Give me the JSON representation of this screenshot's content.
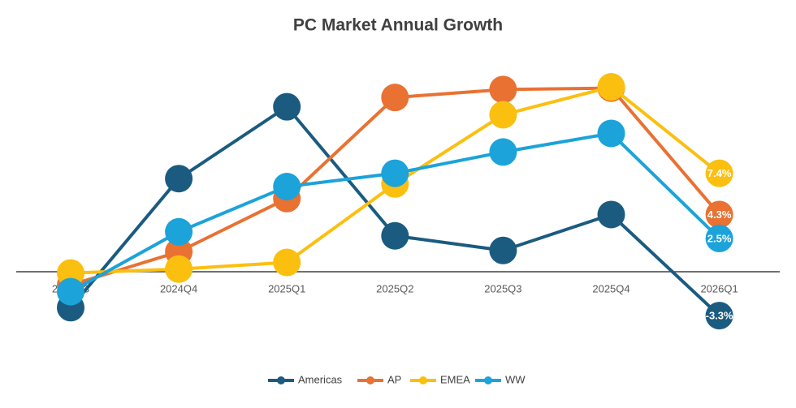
{
  "chart_data": {
    "type": "line",
    "title": "PC Market Annual Growth",
    "categories": [
      "2024Q3",
      "2024Q4",
      "2025Q1",
      "2025Q2",
      "2025Q3",
      "2025Q4",
      "2026Q1"
    ],
    "series": [
      {
        "name": "Americas",
        "color": "#1b5b80",
        "values": [
          -2.7,
          7.0,
          12.4,
          2.7,
          1.6,
          4.3,
          -3.3
        ],
        "value_labels": [
          null,
          null,
          null,
          null,
          null,
          null,
          "-3.3%"
        ]
      },
      {
        "name": "AP",
        "color": "#e97132",
        "values": [
          -1.0,
          1.5,
          5.5,
          13.1,
          13.7,
          13.8,
          4.3
        ],
        "value_labels": [
          null,
          null,
          null,
          null,
          null,
          null,
          "4.3%"
        ]
      },
      {
        "name": "EMEA",
        "color": "#fbbf0f",
        "values": [
          -0.1,
          0.2,
          0.7,
          6.6,
          11.8,
          13.9,
          7.4
        ],
        "value_labels": [
          null,
          null,
          null,
          null,
          null,
          null,
          "7.4%"
        ]
      },
      {
        "name": "WW",
        "color": "#1ba3da",
        "values": [
          -1.5,
          3.0,
          6.4,
          7.4,
          9.0,
          10.4,
          2.5
        ],
        "value_labels": [
          null,
          null,
          null,
          null,
          null,
          null,
          "2.5%"
        ]
      }
    ],
    "legend": "bottom"
  }
}
